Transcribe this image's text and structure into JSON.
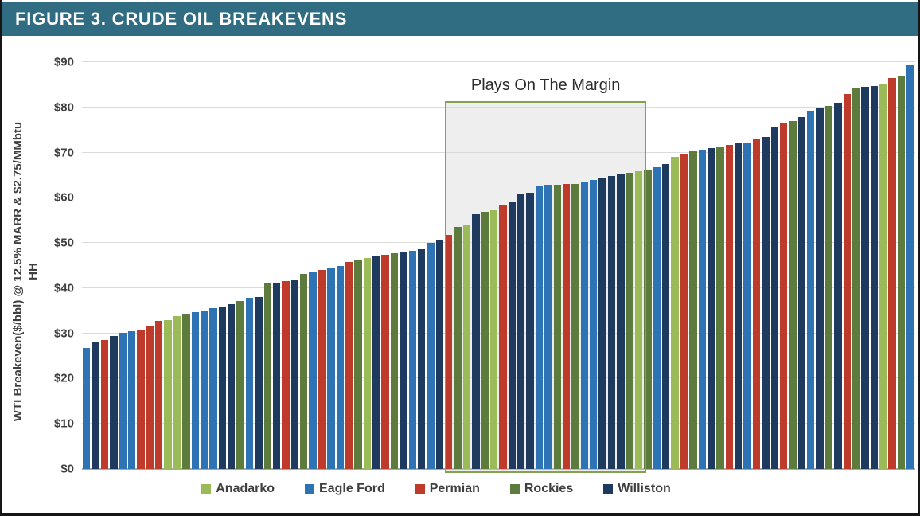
{
  "figure": {
    "title": "FIGURE 3. CRUDE OIL BREAKEVENS",
    "header_color": "#316d82",
    "frame_color": "#161616"
  },
  "chart_data": {
    "type": "bar",
    "title": "",
    "ylabel_line1": "WTI Breakeven($/bbl) @ 12.5% MARR & $2.75/MMbtu",
    "ylabel_line2": "HH",
    "ylim": [
      0,
      90
    ],
    "ytick_step": 10,
    "ytick_labels": [
      "$0",
      "$10",
      "$20",
      "$30",
      "$40",
      "$50",
      "$60",
      "$70",
      "$80",
      "$90"
    ],
    "grid": "horizontal",
    "legend_position": "bottom",
    "legend": [
      "Anadarko",
      "Eagle Ford",
      "Permian",
      "Rockies",
      "Williston"
    ],
    "series_colors": {
      "Anadarko": "#9bbb59",
      "Eagle Ford": "#2e74b5",
      "Permian": "#be3b2c",
      "Rockies": "#5d7b3d",
      "Williston": "#1f3a5f"
    },
    "annotation": {
      "label": "Plays On The Margin",
      "box_value_top": 81.3,
      "box_left_pct": 43.6,
      "box_width_pct": 24.1,
      "box_border_color": "#84a150",
      "box_fill_color": "rgba(214,214,214,0.42)"
    },
    "bars": [
      {
        "play": "Eagle Ford",
        "value": 26.7
      },
      {
        "play": "Williston",
        "value": 28.0
      },
      {
        "play": "Permian",
        "value": 28.5
      },
      {
        "play": "Williston",
        "value": 29.4
      },
      {
        "play": "Eagle Ford",
        "value": 30.2
      },
      {
        "play": "Eagle Ford",
        "value": 30.4
      },
      {
        "play": "Permian",
        "value": 30.6
      },
      {
        "play": "Permian",
        "value": 31.6
      },
      {
        "play": "Permian",
        "value": 32.7
      },
      {
        "play": "Anadarko",
        "value": 33.0
      },
      {
        "play": "Anadarko",
        "value": 33.8
      },
      {
        "play": "Rockies",
        "value": 34.4
      },
      {
        "play": "Eagle Ford",
        "value": 34.7
      },
      {
        "play": "Eagle Ford",
        "value": 35.0
      },
      {
        "play": "Eagle Ford",
        "value": 35.6
      },
      {
        "play": "Williston",
        "value": 36.0
      },
      {
        "play": "Williston",
        "value": 36.5
      },
      {
        "play": "Rockies",
        "value": 37.2
      },
      {
        "play": "Eagle Ford",
        "value": 37.8
      },
      {
        "play": "Williston",
        "value": 38.1
      },
      {
        "play": "Rockies",
        "value": 41.0
      },
      {
        "play": "Williston",
        "value": 41.3
      },
      {
        "play": "Permian",
        "value": 41.6
      },
      {
        "play": "Williston",
        "value": 42.0
      },
      {
        "play": "Rockies",
        "value": 43.2
      },
      {
        "play": "Eagle Ford",
        "value": 43.5
      },
      {
        "play": "Permian",
        "value": 44.0
      },
      {
        "play": "Eagle Ford",
        "value": 44.5
      },
      {
        "play": "Eagle Ford",
        "value": 45.0
      },
      {
        "play": "Permian",
        "value": 45.8
      },
      {
        "play": "Rockies",
        "value": 46.2
      },
      {
        "play": "Anadarko",
        "value": 46.6
      },
      {
        "play": "Williston",
        "value": 47.0
      },
      {
        "play": "Permian",
        "value": 47.4
      },
      {
        "play": "Rockies",
        "value": 47.7
      },
      {
        "play": "Williston",
        "value": 48.0
      },
      {
        "play": "Eagle Ford",
        "value": 48.3
      },
      {
        "play": "Williston",
        "value": 48.7
      },
      {
        "play": "Eagle Ford",
        "value": 50.1
      },
      {
        "play": "Williston",
        "value": 50.5
      },
      {
        "play": "Permian",
        "value": 51.7
      },
      {
        "play": "Rockies",
        "value": 53.5
      },
      {
        "play": "Anadarko",
        "value": 54.1
      },
      {
        "play": "Williston",
        "value": 56.4
      },
      {
        "play": "Rockies",
        "value": 56.9
      },
      {
        "play": "Anadarko",
        "value": 57.2
      },
      {
        "play": "Permian",
        "value": 58.4
      },
      {
        "play": "Williston",
        "value": 59.0
      },
      {
        "play": "Williston",
        "value": 60.7
      },
      {
        "play": "Williston",
        "value": 61.2
      },
      {
        "play": "Eagle Ford",
        "value": 62.7
      },
      {
        "play": "Eagle Ford",
        "value": 62.8
      },
      {
        "play": "Rockies",
        "value": 62.9
      },
      {
        "play": "Permian",
        "value": 63.0
      },
      {
        "play": "Rockies",
        "value": 63.1
      },
      {
        "play": "Eagle Ford",
        "value": 63.5
      },
      {
        "play": "Eagle Ford",
        "value": 64.0
      },
      {
        "play": "Williston",
        "value": 64.3
      },
      {
        "play": "Williston",
        "value": 64.9
      },
      {
        "play": "Williston",
        "value": 65.2
      },
      {
        "play": "Rockies",
        "value": 65.5
      },
      {
        "play": "Anadarko",
        "value": 65.9
      },
      {
        "play": "Rockies",
        "value": 66.3
      },
      {
        "play": "Eagle Ford",
        "value": 66.7
      },
      {
        "play": "Williston",
        "value": 67.4
      },
      {
        "play": "Anadarko",
        "value": 69.0
      },
      {
        "play": "Permian",
        "value": 69.6
      },
      {
        "play": "Rockies",
        "value": 70.2
      },
      {
        "play": "Eagle Ford",
        "value": 70.6
      },
      {
        "play": "Williston",
        "value": 70.9
      },
      {
        "play": "Rockies",
        "value": 71.1
      },
      {
        "play": "Permian",
        "value": 71.6
      },
      {
        "play": "Williston",
        "value": 72.0
      },
      {
        "play": "Eagle Ford",
        "value": 72.3
      },
      {
        "play": "Permian",
        "value": 73.1
      },
      {
        "play": "Williston",
        "value": 73.5
      },
      {
        "play": "Williston",
        "value": 75.5
      },
      {
        "play": "Permian",
        "value": 76.4
      },
      {
        "play": "Rockies",
        "value": 77.0
      },
      {
        "play": "Williston",
        "value": 77.8
      },
      {
        "play": "Eagle Ford",
        "value": 79.0
      },
      {
        "play": "Williston",
        "value": 79.8
      },
      {
        "play": "Rockies",
        "value": 80.4
      },
      {
        "play": "Williston",
        "value": 81.0
      },
      {
        "play": "Permian",
        "value": 83.0
      },
      {
        "play": "Rockies",
        "value": 84.4
      },
      {
        "play": "Williston",
        "value": 84.6
      },
      {
        "play": "Williston",
        "value": 84.8
      },
      {
        "play": "Anadarko",
        "value": 85.0
      },
      {
        "play": "Permian",
        "value": 86.5
      },
      {
        "play": "Rockies",
        "value": 87.0
      },
      {
        "play": "Eagle Ford",
        "value": 89.3
      }
    ]
  }
}
